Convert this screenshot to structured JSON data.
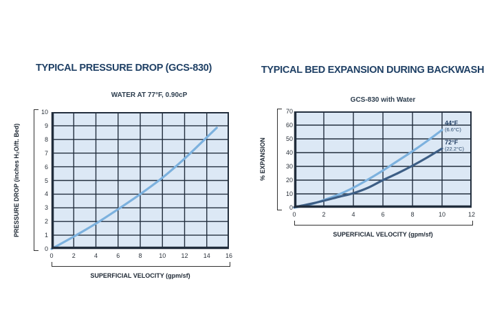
{
  "style": {
    "title_color": "#1f4065",
    "subtitle_color": "#2b3c4d",
    "tick_color": "#2b323b",
    "axis_color": "#1d2733",
    "plot_bg": "#dce8f5",
    "grid_color": "#212d3c",
    "line_light_blue": "#7cb1de",
    "line_dark_blue": "#3d5e85"
  },
  "chart_data": [
    {
      "type": "line",
      "title": "TYPICAL PRESSURE DROP (GCS-830)",
      "subtitle": "WATER AT 77°F, 0.90cP",
      "xlabel": "SUPERFICIAL VELOCITY (gpm/sf)",
      "ylabel": "PRESSURE DROP (inches H₂O/ft. Bed)",
      "xlim": [
        0,
        16
      ],
      "ylim": [
        0,
        10
      ],
      "x_ticks": [
        0,
        2,
        4,
        6,
        8,
        10,
        12,
        14,
        16
      ],
      "y_ticks": [
        0,
        1,
        2,
        3,
        4,
        5,
        6,
        7,
        8,
        9,
        10
      ],
      "grid": true,
      "legend_position": "none",
      "series": [
        {
          "name": "pressure-drop-water-77F",
          "color": "#7cb1de",
          "x": [
            0,
            2,
            4,
            6,
            8,
            10,
            12,
            14,
            14.9
          ],
          "y": [
            0,
            0.9,
            1.85,
            2.9,
            4.0,
            5.2,
            6.6,
            8.15,
            8.85
          ]
        }
      ]
    },
    {
      "type": "line",
      "title": "TYPICAL BED EXPANSION DURING BACKWASH",
      "subtitle": "GCS-830 with Water",
      "xlabel": "SUPERFICIAL VELOCITY (gpm/sf)",
      "ylabel": "% EXPANSION",
      "xlim": [
        0,
        12
      ],
      "ylim": [
        0,
        70
      ],
      "x_ticks": [
        0,
        2,
        4,
        6,
        8,
        10,
        12
      ],
      "y_ticks": [
        0,
        10,
        20,
        30,
        40,
        50,
        60,
        70
      ],
      "grid": true,
      "legend_position": "inline-right",
      "series": [
        {
          "name": "expansion-44F",
          "label": "44°F",
          "sublabel": "(6.6°C)",
          "color": "#7cb1de",
          "x": [
            0,
            1,
            2,
            3,
            4,
            5,
            6,
            7,
            8,
            9,
            10
          ],
          "y": [
            0,
            2,
            5.5,
            9.5,
            14.5,
            20.5,
            27,
            34,
            41,
            48.5,
            56.5
          ]
        },
        {
          "name": "expansion-72F",
          "label": "72°F",
          "sublabel": "(22.2°C)",
          "color": "#3d5e85",
          "x": [
            0,
            1,
            2,
            3,
            4,
            5,
            6,
            7,
            8,
            9,
            10
          ],
          "y": [
            0.3,
            2.5,
            5,
            7.8,
            10.5,
            14.5,
            20,
            25,
            30.5,
            36.5,
            43
          ]
        }
      ]
    }
  ]
}
